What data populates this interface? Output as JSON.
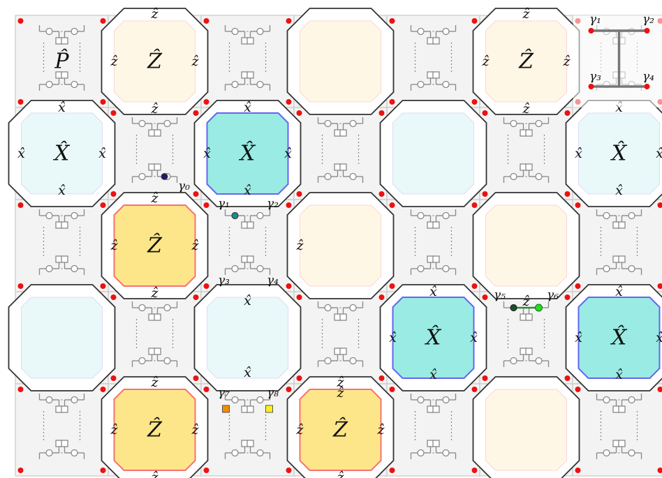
{
  "diagram": {
    "corner_label": "P̂",
    "plaquette_hat_z": "ẑ",
    "plaquette_hat_x": "x̂",
    "Z_label": "Ẑ",
    "X_label": "X̂",
    "colors": {
      "z_faint": "#fff7e6",
      "z_active": "#fde68a",
      "z_edge": "#f87171",
      "x_faint": "#e9f8f9",
      "x_active": "#99ebe3",
      "x_edge": "#6366f1",
      "cell_fill": "#f3f3f3",
      "cell_edge": "#c8c8c8",
      "corner_dot": "#ee1111",
      "line": "#333333"
    },
    "grid": {
      "rows": [
        [
          "cell",
          "z",
          "cell",
          "z",
          "cell",
          "z",
          "cell"
        ],
        [
          "x",
          "cell",
          "x",
          "cell",
          "x",
          "cell",
          "x"
        ],
        [
          "cell",
          "z",
          "cell",
          "z",
          "cell",
          "z",
          "cell"
        ],
        [
          "x",
          "cell",
          "x",
          "cell",
          "x",
          "cell",
          "x"
        ],
        [
          "cell",
          "z",
          "cell",
          "z",
          "cell",
          "z",
          "cell"
        ]
      ],
      "active_x": [
        [
          1,
          2
        ],
        [
          3,
          4
        ],
        [
          3,
          6
        ]
      ],
      "active_z": [
        [
          2,
          1
        ],
        [
          4,
          1
        ],
        [
          4,
          3
        ]
      ],
      "labeled_z": [
        [
          0,
          1
        ],
        [
          0,
          5
        ],
        [
          2,
          1
        ],
        [
          4,
          1
        ],
        [
          4,
          3
        ]
      ],
      "labeled_x": [
        [
          1,
          0
        ],
        [
          1,
          2
        ],
        [
          1,
          6
        ],
        [
          3,
          4
        ],
        [
          3,
          6
        ]
      ]
    },
    "gammas": {
      "g0": "γ₀",
      "g1": "γ₁",
      "g2": "γ₂",
      "g3": "γ₃",
      "g4": "γ₄",
      "g5": "γ₅",
      "g6": "γ₆",
      "g7": "γ₇",
      "g8": "γ₈"
    },
    "markers": {
      "navy_dot": "#1e1b6b",
      "teal_dot": "#1a8b8b",
      "dark_green_dot": "#14532d",
      "bright_green_dot": "#22dd22",
      "orange_square": "#f08c00",
      "yellow_square": "#ffee22"
    }
  }
}
